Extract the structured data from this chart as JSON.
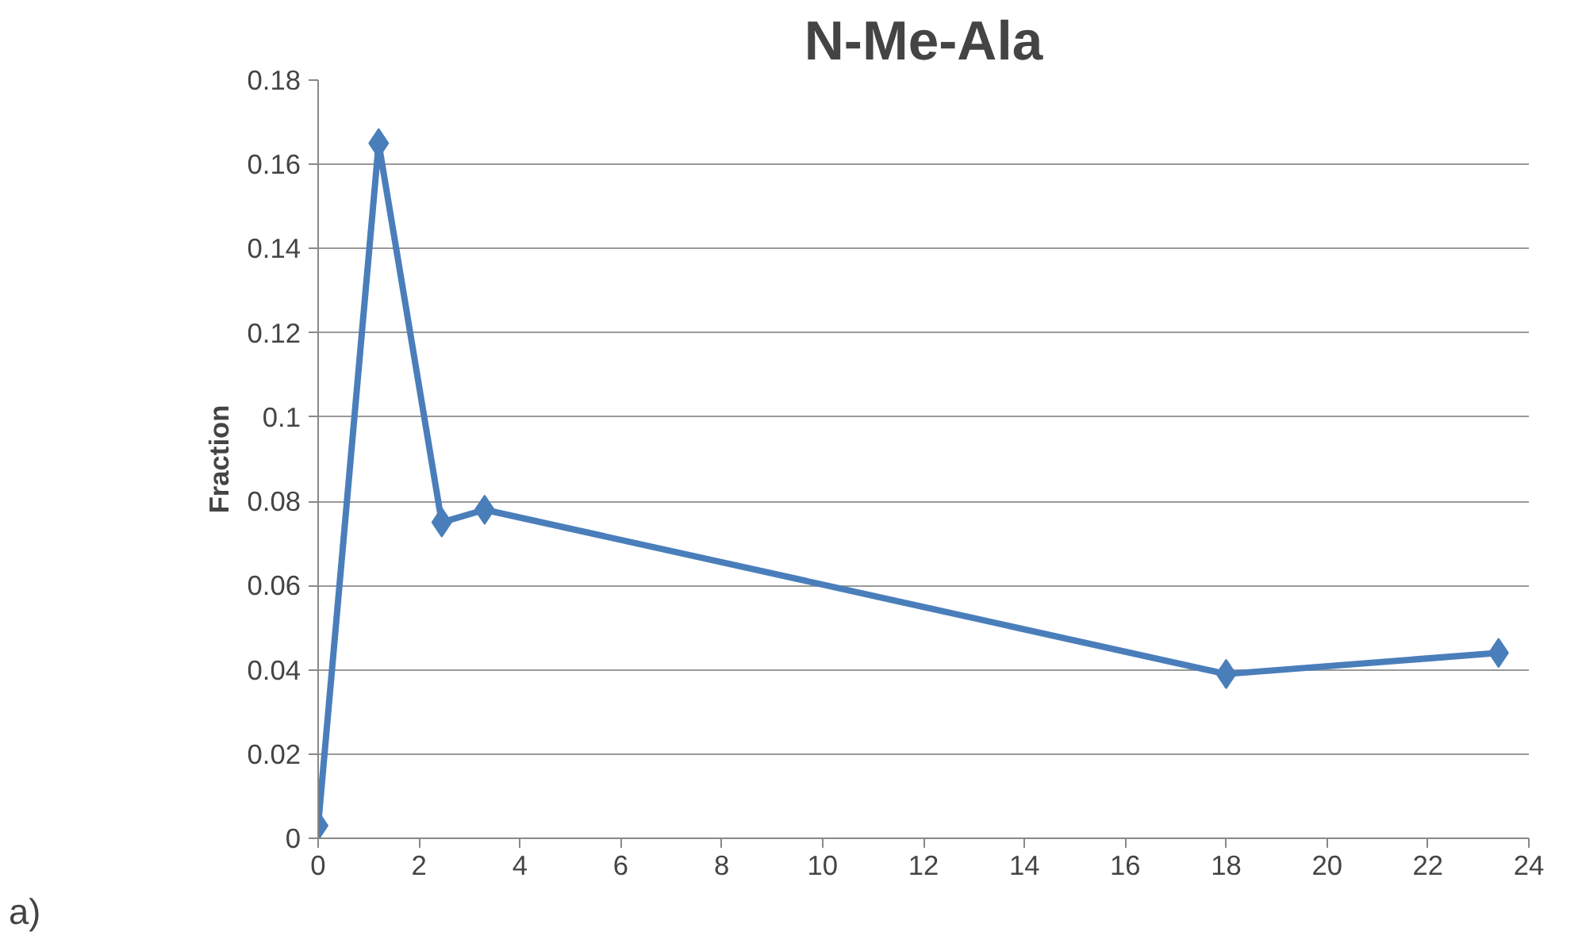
{
  "chart_data": {
    "type": "line",
    "title": "N-Me-Ala",
    "ylabel": "Fraction",
    "x": [
      0,
      1.2,
      2.45,
      3.3,
      18,
      23.4
    ],
    "series": [
      {
        "color": "#4a7ebb",
        "values": [
          0.003,
          0.165,
          0.075,
          0.078,
          0.039,
          0.044
        ]
      }
    ],
    "xlim": [
      0,
      24
    ],
    "xticks": [
      0,
      2,
      4,
      6,
      8,
      10,
      12,
      14,
      16,
      18,
      20,
      22,
      24
    ],
    "ylim": [
      0,
      0.18
    ],
    "yticks": [
      0,
      0.02,
      0.04,
      0.06,
      0.08,
      {
        "value": 0.1,
        "label": "0.1"
      },
      0.12,
      0.14,
      0.16,
      0.18
    ],
    "grid": "y",
    "marker": "diamond",
    "line_style": "solid",
    "annotations": [
      "a)"
    ]
  }
}
